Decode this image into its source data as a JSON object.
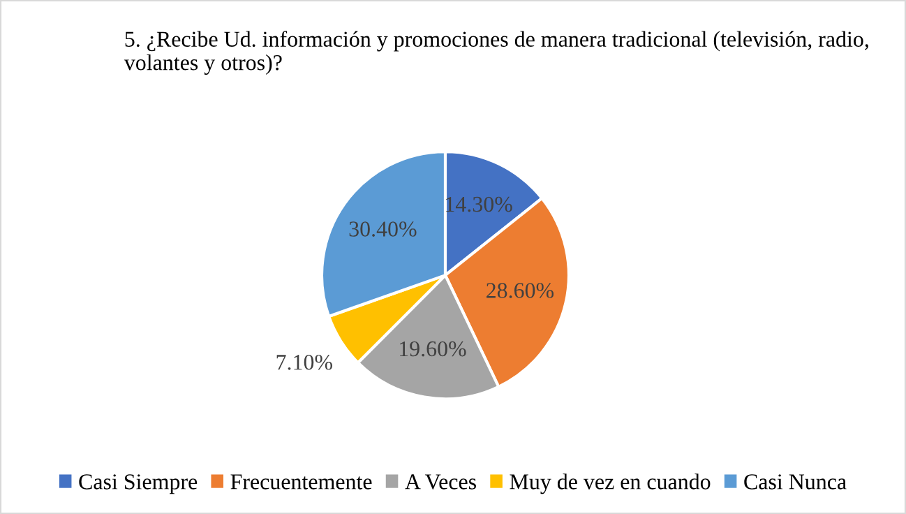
{
  "chart_data": {
    "type": "pie",
    "title": "5. ¿Recibe Ud. información y promociones de manera tradicional (televisión, radio, volantes y otros)?",
    "categories": [
      "Casi Siempre",
      "Frecuentemente",
      "A Veces",
      "Muy de vez en cuando",
      "Casi Nunca"
    ],
    "values": [
      14.3,
      28.6,
      19.6,
      7.1,
      30.4
    ],
    "value_labels": [
      "14.30%",
      "28.60%",
      "19.60%",
      "7.10%",
      "30.40%"
    ],
    "colors": [
      "#4472c4",
      "#ed7d31",
      "#a5a5a5",
      "#ffc000",
      "#5b9bd5"
    ],
    "legend": "bottom"
  }
}
